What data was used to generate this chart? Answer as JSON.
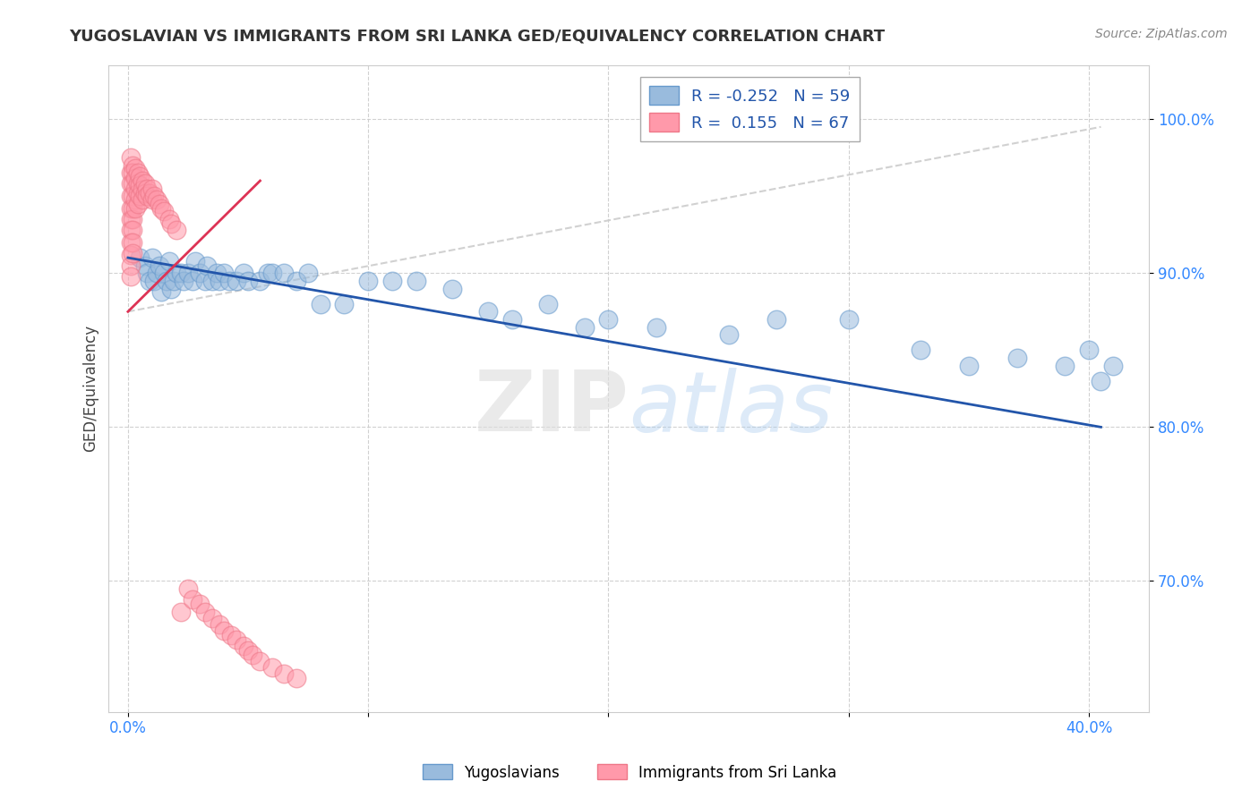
{
  "title": "YUGOSLAVIAN VS IMMIGRANTS FROM SRI LANKA GED/EQUIVALENCY CORRELATION CHART",
  "source_text": "Source: ZipAtlas.com",
  "ylabel": "GED/Equivalency",
  "legend_label_blue": "Yugoslavians",
  "legend_label_pink": "Immigrants from Sri Lanka",
  "R_blue": -0.252,
  "N_blue": 59,
  "R_pink": 0.155,
  "N_pink": 67,
  "color_blue": "#99BBDD",
  "color_pink": "#FF99AA",
  "color_trendline_blue": "#2255AA",
  "color_trendline_pink": "#DD3355",
  "color_trendline_dashed": "#CCCCCC",
  "xlim": [
    -0.008,
    0.425
  ],
  "ylim": [
    0.615,
    1.035
  ],
  "xtick_vals": [
    0.0,
    0.1,
    0.2,
    0.3,
    0.4
  ],
  "xtick_labels": [
    "0.0%",
    "",
    "",
    "",
    "40.0%"
  ],
  "ytick_vals": [
    0.7,
    0.8,
    0.9,
    1.0
  ],
  "ytick_labels": [
    "70.0%",
    "80.0%",
    "90.0%",
    "100.0%"
  ],
  "watermark": "ZIPatlas",
  "blue_trend_x": [
    0.0,
    0.405
  ],
  "blue_trend_y": [
    0.91,
    0.8
  ],
  "pink_trend_x": [
    0.0,
    0.055
  ],
  "pink_trend_y": [
    0.875,
    0.96
  ],
  "dashed_trend_x": [
    0.0,
    0.405
  ],
  "dashed_trend_y": [
    0.875,
    0.995
  ],
  "blue_x": [
    0.005,
    0.007,
    0.008,
    0.009,
    0.01,
    0.011,
    0.012,
    0.013,
    0.014,
    0.015,
    0.016,
    0.017,
    0.018,
    0.019,
    0.02,
    0.022,
    0.023,
    0.025,
    0.027,
    0.028,
    0.03,
    0.032,
    0.033,
    0.035,
    0.037,
    0.038,
    0.04,
    0.042,
    0.045,
    0.048,
    0.05,
    0.055,
    0.058,
    0.06,
    0.065,
    0.07,
    0.075,
    0.08,
    0.09,
    0.1,
    0.11,
    0.12,
    0.135,
    0.15,
    0.16,
    0.175,
    0.19,
    0.2,
    0.22,
    0.25,
    0.27,
    0.3,
    0.33,
    0.35,
    0.37,
    0.39,
    0.4,
    0.405,
    0.41
  ],
  "blue_y": [
    0.91,
    0.905,
    0.9,
    0.895,
    0.91,
    0.895,
    0.9,
    0.905,
    0.888,
    0.9,
    0.895,
    0.908,
    0.89,
    0.895,
    0.9,
    0.9,
    0.895,
    0.9,
    0.895,
    0.908,
    0.9,
    0.895,
    0.905,
    0.895,
    0.9,
    0.895,
    0.9,
    0.895,
    0.895,
    0.9,
    0.895,
    0.895,
    0.9,
    0.9,
    0.9,
    0.895,
    0.9,
    0.88,
    0.88,
    0.895,
    0.895,
    0.895,
    0.89,
    0.875,
    0.87,
    0.88,
    0.865,
    0.87,
    0.865,
    0.86,
    0.87,
    0.87,
    0.85,
    0.84,
    0.845,
    0.84,
    0.85,
    0.83,
    0.84
  ],
  "pink_x": [
    0.001,
    0.001,
    0.001,
    0.001,
    0.001,
    0.001,
    0.001,
    0.001,
    0.001,
    0.001,
    0.001,
    0.002,
    0.002,
    0.002,
    0.002,
    0.002,
    0.002,
    0.002,
    0.002,
    0.002,
    0.003,
    0.003,
    0.003,
    0.003,
    0.003,
    0.004,
    0.004,
    0.004,
    0.004,
    0.005,
    0.005,
    0.005,
    0.006,
    0.006,
    0.006,
    0.007,
    0.007,
    0.008,
    0.008,
    0.009,
    0.01,
    0.01,
    0.011,
    0.012,
    0.013,
    0.014,
    0.015,
    0.017,
    0.018,
    0.02,
    0.022,
    0.025,
    0.027,
    0.03,
    0.032,
    0.035,
    0.038,
    0.04,
    0.043,
    0.045,
    0.048,
    0.05,
    0.052,
    0.055,
    0.06,
    0.065,
    0.07
  ],
  "pink_y": [
    0.975,
    0.965,
    0.958,
    0.95,
    0.942,
    0.935,
    0.928,
    0.92,
    0.912,
    0.905,
    0.898,
    0.97,
    0.965,
    0.958,
    0.95,
    0.942,
    0.935,
    0.928,
    0.92,
    0.913,
    0.968,
    0.962,
    0.955,
    0.948,
    0.942,
    0.965,
    0.958,
    0.952,
    0.945,
    0.963,
    0.957,
    0.95,
    0.96,
    0.954,
    0.948,
    0.958,
    0.952,
    0.955,
    0.95,
    0.952,
    0.948,
    0.955,
    0.95,
    0.948,
    0.945,
    0.942,
    0.94,
    0.935,
    0.932,
    0.928,
    0.68,
    0.695,
    0.688,
    0.685,
    0.68,
    0.676,
    0.672,
    0.668,
    0.665,
    0.662,
    0.658,
    0.655,
    0.652,
    0.648,
    0.644,
    0.64,
    0.637
  ]
}
